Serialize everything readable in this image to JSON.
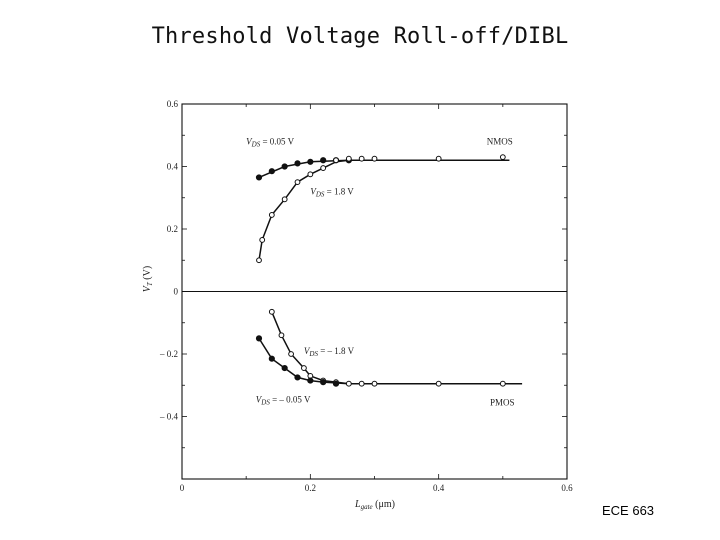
{
  "slide": {
    "title": "Threshold Voltage Roll-off/DIBL",
    "footer": "ECE 663"
  },
  "chart_data": {
    "type": "line",
    "title": "",
    "xlabel": "L_gate (μm)",
    "ylabel": "V_T (V)",
    "xlim": [
      0,
      0.6
    ],
    "ylim": [
      -0.6,
      0.6
    ],
    "xticks": [
      0,
      0.2,
      0.4,
      0.6
    ],
    "xtick_labels": [
      "0",
      "0.2",
      "0.4",
      "0.6"
    ],
    "yticks": [
      0.6,
      0.4,
      0.2,
      0,
      -0.2,
      -0.4
    ],
    "ytick_labels": [
      "0.6",
      "0.4",
      "0.2",
      "0",
      "– 0.2",
      "– 0.4"
    ],
    "grid": false,
    "annotations": [
      {
        "id": "nmos_low",
        "text": "V_DS = 0.05 V",
        "x": 0.1,
        "y": 0.47
      },
      {
        "id": "nmos_high",
        "text": "V_DS = 1.8 V",
        "x": 0.2,
        "y": 0.31
      },
      {
        "id": "nmos",
        "text": "NMOS",
        "x": 0.475,
        "y": 0.47
      },
      {
        "id": "pmos_high",
        "text": "V_DS = – 1.8 V",
        "x": 0.19,
        "y": -0.2
      },
      {
        "id": "pmos_low",
        "text": "V_DS = – 0.05 V",
        "x": 0.115,
        "y": -0.355
      },
      {
        "id": "pmos",
        "text": "PMOS",
        "x": 0.48,
        "y": -0.365
      }
    ],
    "series": [
      {
        "id": "nmos-vds-0.05",
        "marker": "filled",
        "x": [
          0.12,
          0.14,
          0.16,
          0.18,
          0.2,
          0.22,
          0.24,
          0.26
        ],
        "y": [
          0.365,
          0.385,
          0.4,
          0.41,
          0.415,
          0.42,
          0.42,
          0.42
        ],
        "line_x": [
          0.12,
          0.16,
          0.2,
          0.26,
          0.3,
          0.4,
          0.5,
          0.51
        ],
        "line_y": [
          0.365,
          0.4,
          0.415,
          0.42,
          0.42,
          0.42,
          0.42,
          0.42
        ]
      },
      {
        "id": "nmos-vds-1.8",
        "marker": "open",
        "x": [
          0.12,
          0.125,
          0.14,
          0.16,
          0.18,
          0.2,
          0.22,
          0.24,
          0.26,
          0.28,
          0.3,
          0.4,
          0.5
        ],
        "y": [
          0.1,
          0.165,
          0.245,
          0.295,
          0.35,
          0.375,
          0.395,
          0.42,
          0.425,
          0.425,
          0.425,
          0.425,
          0.43
        ],
        "line_x": [
          0.12,
          0.125,
          0.14,
          0.16,
          0.18,
          0.2,
          0.22,
          0.24,
          0.26,
          0.3,
          0.4,
          0.51
        ],
        "line_y": [
          0.1,
          0.165,
          0.245,
          0.295,
          0.35,
          0.375,
          0.395,
          0.415,
          0.42,
          0.42,
          0.42,
          0.42
        ]
      },
      {
        "id": "pmos-vds-minus-1.8",
        "marker": "open",
        "x": [
          0.14,
          0.155,
          0.17,
          0.19,
          0.2,
          0.22,
          0.24,
          0.26,
          0.28,
          0.3,
          0.4,
          0.5
        ],
        "y": [
          -0.065,
          -0.14,
          -0.2,
          -0.245,
          -0.27,
          -0.285,
          -0.29,
          -0.295,
          -0.295,
          -0.295,
          -0.295,
          -0.295
        ],
        "line_x": [
          0.14,
          0.155,
          0.17,
          0.19,
          0.2,
          0.22,
          0.24,
          0.26,
          0.3,
          0.4,
          0.53
        ],
        "line_y": [
          -0.065,
          -0.14,
          -0.2,
          -0.245,
          -0.27,
          -0.285,
          -0.29,
          -0.295,
          -0.295,
          -0.295,
          -0.295
        ]
      },
      {
        "id": "pmos-vds-minus-0.05",
        "marker": "filled",
        "x": [
          0.12,
          0.14,
          0.16,
          0.18,
          0.2,
          0.22,
          0.24
        ],
        "y": [
          -0.15,
          -0.215,
          -0.245,
          -0.275,
          -0.285,
          -0.29,
          -0.295
        ],
        "line_x": [
          0.12,
          0.14,
          0.16,
          0.18,
          0.2,
          0.22,
          0.26
        ],
        "line_y": [
          -0.15,
          -0.215,
          -0.245,
          -0.275,
          -0.285,
          -0.29,
          -0.295
        ]
      }
    ]
  }
}
